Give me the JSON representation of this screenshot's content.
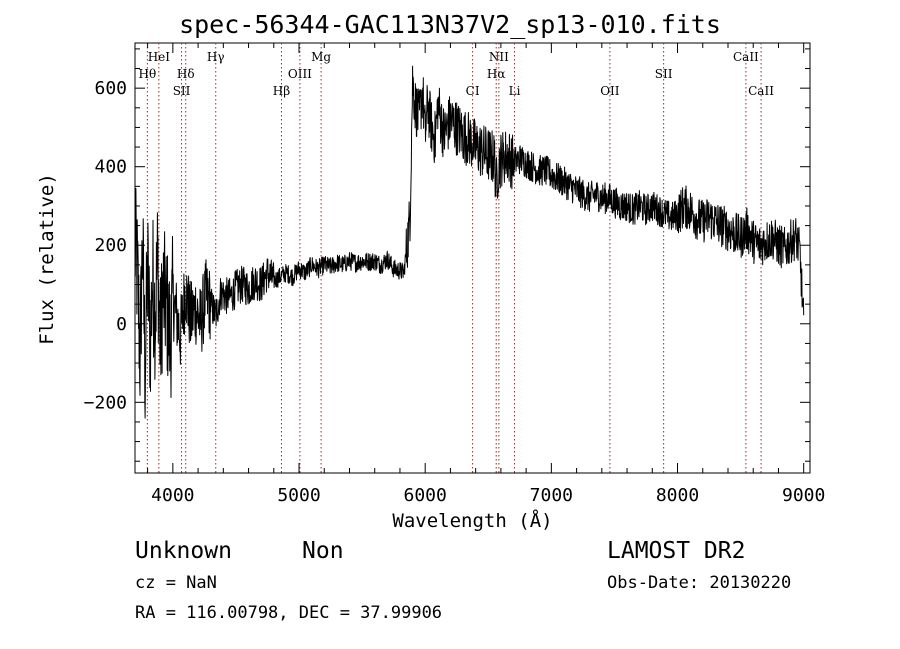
{
  "chart_data": {
    "type": "line",
    "title": "spec-56344-GAC113N37V2_sp13-010.fits",
    "xlabel": "Wavelength (Å)",
    "ylabel": "Flux (relative)",
    "xlim": [
      3700,
      9050
    ],
    "ylim": [
      -380,
      715
    ],
    "xticks": [
      4000,
      5000,
      6000,
      7000,
      8000,
      9000
    ],
    "yticks": [
      -200,
      0,
      200,
      400,
      600
    ],
    "ytick_labels": [
      "−200",
      "0",
      "200",
      "400",
      "600"
    ],
    "grid": false,
    "series": [
      {
        "x": [
          3700,
          3720,
          3740,
          3760,
          3780,
          3800,
          3820,
          3840,
          3860,
          3880,
          3900,
          3920,
          3950,
          3980,
          4000,
          4030,
          4060,
          4100,
          4140,
          4180,
          4220,
          4260,
          4300,
          4340,
          4380,
          4420,
          4460,
          4500,
          4550,
          4600,
          4650,
          4700,
          4750,
          4800,
          4850,
          4900,
          4950,
          5000,
          5050,
          5100,
          5150,
          5200,
          5250,
          5300,
          5350,
          5400,
          5450,
          5500,
          5550,
          5600,
          5650,
          5700,
          5750,
          5800,
          5830,
          5850,
          5870,
          5880,
          5900,
          5920,
          5950,
          5980,
          6000,
          6020,
          6050,
          6080,
          6100,
          6150,
          6200,
          6250,
          6300,
          6350,
          6400,
          6450,
          6500,
          6550,
          6562,
          6580,
          6600,
          6650,
          6700,
          6750,
          6800,
          6850,
          6900,
          6950,
          7000,
          7050,
          7100,
          7150,
          7200,
          7250,
          7300,
          7350,
          7400,
          7450,
          7500,
          7550,
          7600,
          7650,
          7700,
          7750,
          7800,
          7850,
          7900,
          7950,
          8000,
          8050,
          8100,
          8150,
          8200,
          8250,
          8300,
          8350,
          8400,
          8450,
          8500,
          8550,
          8600,
          8650,
          8700,
          8750,
          8800,
          8850,
          8900,
          8940,
          8970,
          9000
        ],
        "y": [
          200,
          120,
          -80,
          200,
          -120,
          150,
          -50,
          120,
          20,
          180,
          -60,
          80,
          40,
          -40,
          60,
          20,
          -30,
          90,
          10,
          40,
          0,
          70,
          50,
          20,
          80,
          70,
          70,
          90,
          100,
          90,
          110,
          100,
          130,
          110,
          120,
          130,
          120,
          140,
          130,
          150,
          140,
          150,
          145,
          155,
          150,
          160,
          155,
          160,
          158,
          160,
          150,
          165,
          140,
          135,
          130,
          180,
          240,
          280,
          620,
          560,
          520,
          590,
          480,
          560,
          500,
          470,
          560,
          480,
          520,
          500,
          480,
          470,
          450,
          440,
          430,
          420,
          350,
          400,
          420,
          430,
          410,
          420,
          410,
          400,
          390,
          390,
          380,
          370,
          360,
          350,
          340,
          330,
          320,
          330,
          320,
          320,
          310,
          300,
          300,
          290,
          300,
          290,
          300,
          290,
          280,
          270,
          280,
          300,
          290,
          270,
          260,
          270,
          260,
          250,
          240,
          230,
          220,
          240,
          210,
          200,
          210,
          220,
          200,
          190,
          210,
          220,
          180,
          0
        ]
      }
    ]
  },
  "lines": {
    "labels": [
      "HeI",
      "Hθ",
      "Hδ",
      "SII",
      "Hγ",
      "Hβ",
      "OIII",
      "Mg",
      "CI",
      "NII",
      "Hα",
      "Li",
      "OII",
      "SII",
      "CaII",
      "CaII"
    ],
    "wavelengths": [
      3889,
      3798,
      4102,
      4069,
      4340,
      4861,
      5007,
      5175,
      6376,
      6584,
      6563,
      6708,
      7464,
      7890,
      8542,
      8662
    ],
    "rows": [
      1,
      2,
      2,
      3,
      1,
      3,
      2,
      1,
      3,
      1,
      2,
      3,
      3,
      2,
      1,
      3
    ]
  },
  "labels": {
    "object_class": "Unknown",
    "object_subclass": "Non",
    "survey": "LAMOST DR2",
    "cz": "cz = NaN",
    "obs_date": "Obs-Date: 20130220",
    "coords": "RA = 116.00798, DEC =  37.99906"
  }
}
